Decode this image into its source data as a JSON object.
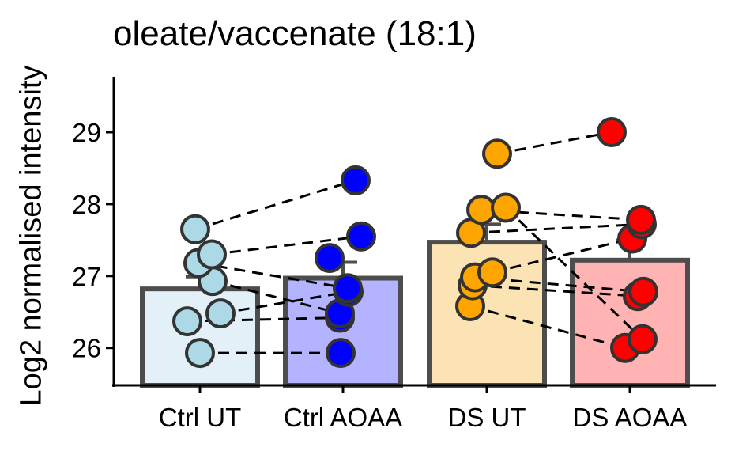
{
  "chart_data": {
    "type": "bar",
    "title": "oleate/vaccenate (18:1)",
    "xlabel": "",
    "ylabel": "Log2 normalised intensity",
    "categories": [
      "Ctrl UT",
      "Ctrl AOAA",
      "DS UT",
      "DS AOAA"
    ],
    "ylim": [
      25.5,
      29.75
    ],
    "yticks": [
      26,
      27,
      28,
      29
    ],
    "grid": false,
    "legend": "none",
    "bars": [
      {
        "category": "Ctrl UT",
        "mean": 26.82,
        "se": 0.17,
        "fill": "#e3f0f7",
        "point_color": "#add8e6"
      },
      {
        "category": "Ctrl AOAA",
        "mean": 26.97,
        "se": 0.22,
        "fill": "#b3b3ff",
        "point_color": "#0000ff"
      },
      {
        "category": "DS UT",
        "mean": 27.47,
        "se": 0.25,
        "fill": "#fbe3b3",
        "point_color": "#ffa500"
      },
      {
        "category": "DS AOAA",
        "mean": 27.22,
        "se": 0.28,
        "fill": "#ffb3b3",
        "point_color": "#ff0000"
      }
    ],
    "points": {
      "Ctrl UT": [
        25.93,
        26.37,
        26.48,
        26.93,
        27.18,
        27.3,
        27.65
      ],
      "Ctrl AOAA": [
        25.93,
        26.42,
        26.48,
        26.78,
        26.83,
        27.25,
        27.55,
        28.33
      ],
      "DS UT": [
        26.58,
        26.87,
        26.98,
        27.05,
        27.6,
        27.92,
        27.95,
        28.7
      ],
      "DS AOAA": [
        26.0,
        26.12,
        26.72,
        26.78,
        27.52,
        27.72,
        27.78,
        29.0
      ]
    },
    "pairs": [
      {
        "from": "Ctrl UT",
        "to": "Ctrl AOAA",
        "y1": 25.93,
        "y2": 25.93
      },
      {
        "from": "Ctrl UT",
        "to": "Ctrl AOAA",
        "y1": 26.37,
        "y2": 26.42
      },
      {
        "from": "Ctrl UT",
        "to": "Ctrl AOAA",
        "y1": 26.48,
        "y2": 26.78
      },
      {
        "from": "Ctrl UT",
        "to": "Ctrl AOAA",
        "y1": 26.93,
        "y2": 26.48
      },
      {
        "from": "Ctrl UT",
        "to": "Ctrl AOAA",
        "y1": 27.18,
        "y2": 26.83
      },
      {
        "from": "Ctrl UT",
        "to": "Ctrl AOAA",
        "y1": 27.3,
        "y2": 27.55
      },
      {
        "from": "Ctrl UT",
        "to": "Ctrl AOAA",
        "y1": 27.65,
        "y2": 28.33
      },
      {
        "from": "DS UT",
        "to": "DS AOAA",
        "y1": 28.7,
        "y2": 29.0
      },
      {
        "from": "DS UT",
        "to": "DS AOAA",
        "y1": 27.92,
        "y2": 27.78
      },
      {
        "from": "DS UT",
        "to": "DS AOAA",
        "y1": 27.95,
        "y2": 26.12
      },
      {
        "from": "DS UT",
        "to": "DS AOAA",
        "y1": 27.6,
        "y2": 27.72
      },
      {
        "from": "DS UT",
        "to": "DS AOAA",
        "y1": 27.05,
        "y2": 27.52
      },
      {
        "from": "DS UT",
        "to": "DS AOAA",
        "y1": 26.98,
        "y2": 26.78
      },
      {
        "from": "DS UT",
        "to": "DS AOAA",
        "y1": 26.87,
        "y2": 26.72
      },
      {
        "from": "DS UT",
        "to": "DS AOAA",
        "y1": 26.58,
        "y2": 26.0
      }
    ]
  }
}
